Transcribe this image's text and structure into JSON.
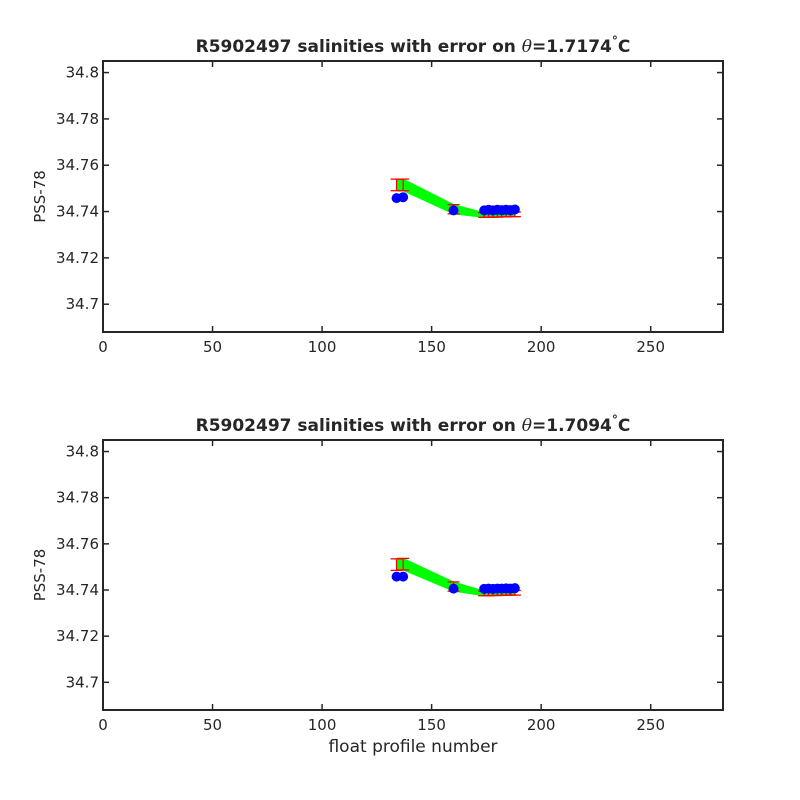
{
  "chart_data": [
    {
      "type": "scatter",
      "title": "R5902497 salinities with error on θ=1.7174°C",
      "title_parts": {
        "prefix": "R5902497 salinities with error on ",
        "symbol": "θ",
        "value": "=1.7174",
        "unit_degree": "°",
        "unit": "C"
      },
      "xlabel": "",
      "ylabel": "PSS-78",
      "xlim": [
        0,
        283
      ],
      "ylim": [
        34.688,
        34.805
      ],
      "xticks": [
        0,
        50,
        100,
        150,
        200,
        250
      ],
      "yticks": [
        34.7,
        34.72,
        34.74,
        34.76,
        34.78,
        34.8
      ],
      "ytick_labels": [
        "34.7",
        "34.72",
        "34.74",
        "34.76",
        "34.78",
        "34.8"
      ],
      "grid": false,
      "legend": "none",
      "colors": {
        "float_points": "#0000ff",
        "mapped_band": "#00ff00",
        "error_bars": "#ff0000"
      },
      "series": [
        {
          "role": "float_salinity",
          "x": [
            134,
            137,
            160,
            174,
            176,
            178,
            180,
            182,
            184,
            186,
            188
          ],
          "values": [
            34.7458,
            34.7462,
            34.7405,
            34.7405,
            34.7408,
            34.7405,
            34.7408,
            34.7406,
            34.7408,
            34.7406,
            34.7409
          ]
        },
        {
          "role": "mapped_salinity",
          "x": [
            134,
            137,
            160,
            174,
            176,
            178,
            180,
            182,
            184,
            186,
            188
          ],
          "values": [
            34.7515,
            34.7515,
            34.741,
            34.7385,
            34.7385,
            34.7386,
            34.7386,
            34.7387,
            34.7387,
            34.7388,
            34.7388
          ],
          "error": [
            0.0025,
            0.0025,
            0.002,
            0.001,
            0.001,
            0.001,
            0.001,
            0.001,
            0.001,
            0.001,
            0.001
          ]
        }
      ]
    },
    {
      "type": "scatter",
      "title": "R5902497 salinities with error on θ=1.7094°C",
      "title_parts": {
        "prefix": "R5902497 salinities with error on ",
        "symbol": "θ",
        "value": "=1.7094",
        "unit_degree": "°",
        "unit": "C"
      },
      "xlabel": "float profile number",
      "ylabel": "PSS-78",
      "xlim": [
        0,
        283
      ],
      "ylim": [
        34.688,
        34.805
      ],
      "xticks": [
        0,
        50,
        100,
        150,
        200,
        250
      ],
      "yticks": [
        34.7,
        34.72,
        34.74,
        34.76,
        34.78,
        34.8
      ],
      "ytick_labels": [
        "34.7",
        "34.72",
        "34.74",
        "34.76",
        "34.78",
        "34.8"
      ],
      "grid": false,
      "legend": "none",
      "colors": {
        "float_points": "#0000ff",
        "mapped_band": "#00ff00",
        "error_bars": "#ff0000"
      },
      "series": [
        {
          "role": "float_salinity",
          "x": [
            134,
            137,
            160,
            174,
            176,
            178,
            180,
            182,
            184,
            186,
            188
          ],
          "values": [
            34.7458,
            34.7458,
            34.7406,
            34.7405,
            34.7406,
            34.7405,
            34.7406,
            34.7406,
            34.7407,
            34.7406,
            34.7408
          ]
        },
        {
          "role": "mapped_salinity",
          "x": [
            134,
            137,
            160,
            174,
            176,
            178,
            180,
            182,
            184,
            186,
            188
          ],
          "values": [
            34.751,
            34.7512,
            34.7415,
            34.7385,
            34.7385,
            34.7386,
            34.7386,
            34.7387,
            34.7387,
            34.7388,
            34.7388
          ],
          "error": [
            0.0025,
            0.0025,
            0.002,
            0.001,
            0.001,
            0.001,
            0.001,
            0.001,
            0.001,
            0.001,
            0.001
          ]
        }
      ]
    }
  ]
}
